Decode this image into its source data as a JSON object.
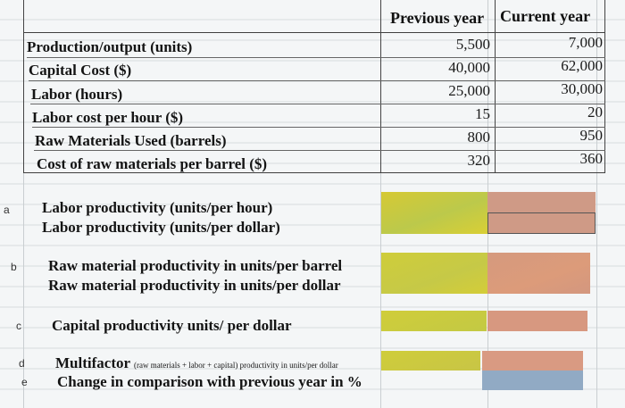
{
  "columns": {
    "previous_year": "Previous year",
    "current_year": "Current year"
  },
  "inputs": [
    {
      "label": "Production/output (units)",
      "previous": "5,500",
      "current": "7,000"
    },
    {
      "label": "Capital Cost ($)",
      "previous": "40,000",
      "current": "62,000"
    },
    {
      "label": "Labor (hours)",
      "previous": "25,000",
      "current": "30,000"
    },
    {
      "label": "Labor cost per hour ($)",
      "previous": "15",
      "current": "20"
    },
    {
      "label": "Raw Materials Used (barrels)",
      "previous": "800",
      "current": "950"
    },
    {
      "label": "Cost of raw materials per barrel ($)",
      "previous": "320",
      "current": "360"
    }
  ],
  "questions": {
    "a": {
      "letter": "a",
      "line1": "Labor productivity (units/per hour)",
      "line2": "Labor productivity (units/per dollar)"
    },
    "b": {
      "letter": "b",
      "line1": "Raw material productivity in units/per barrel",
      "line2": "Raw material productivity in units/per dollar"
    },
    "c": {
      "letter": "c",
      "line1": "Capital productivity units/ per dollar"
    },
    "d": {
      "letter": "d",
      "title": "Multifactor",
      "note": "(raw materials + labor + capital) productivity in units/per dollar"
    },
    "e": {
      "letter": "e",
      "line1": "Change in comparison with previous year in %"
    }
  },
  "colors": {
    "answer_yellow": "#c8c93a",
    "answer_salmon": "#d9957f",
    "answer_blue": "#8fa9c6"
  }
}
